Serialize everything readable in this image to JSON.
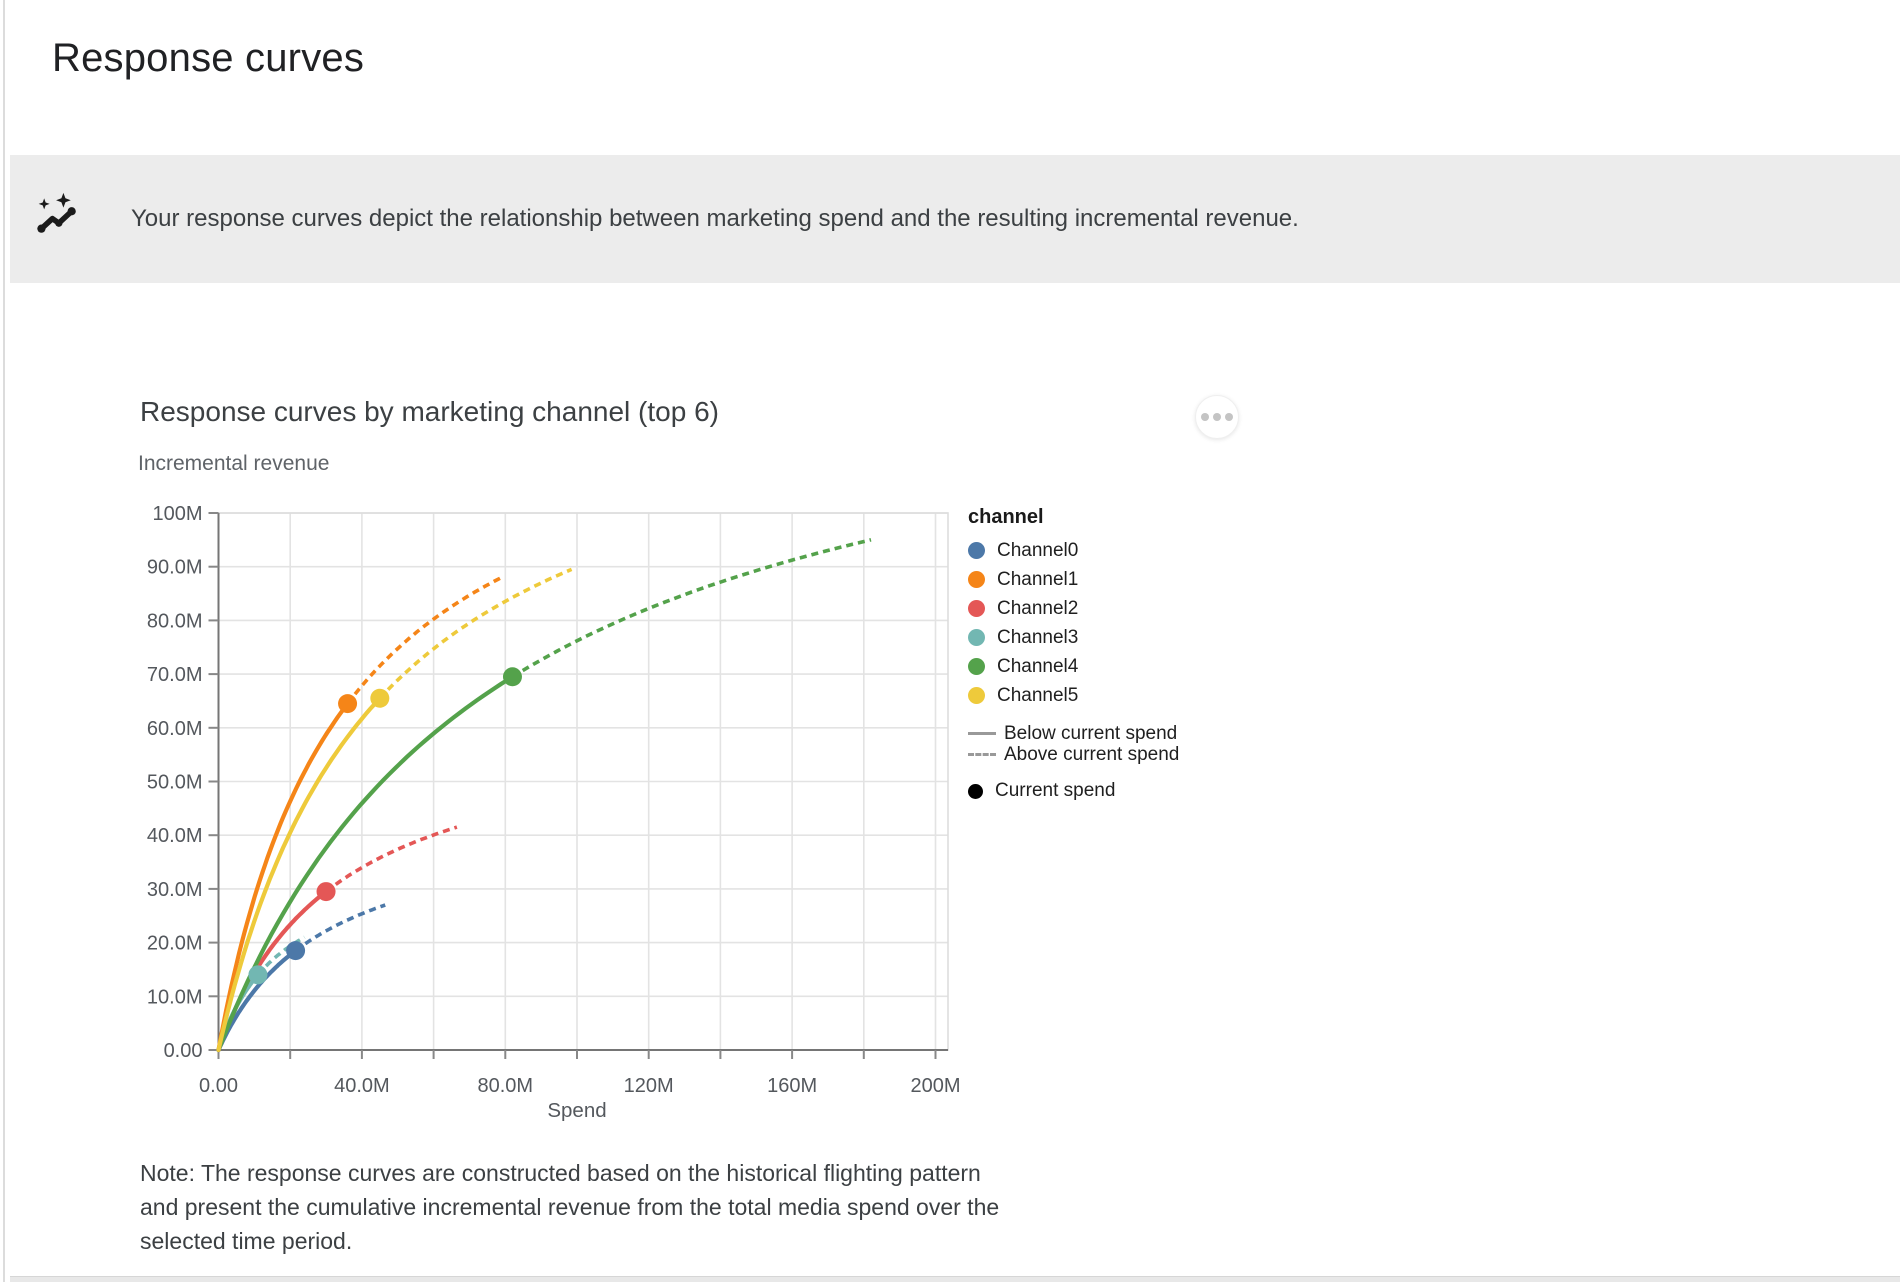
{
  "page": {
    "title": "Response curves",
    "banner": {
      "icon": "trend-sparkle-icon",
      "text": "Your response curves depict the relationship between marketing spend and the resulting incremental revenue."
    }
  },
  "chart": {
    "title": "Response curves by marketing channel (top 6)",
    "note_lines": [
      "Note: The response curves are constructed based on the historical flighting pattern",
      "and present the cumulative incremental revenue from the total media spend over the",
      "selected time period."
    ]
  },
  "chart_data": {
    "type": "line",
    "title": "Response curves by marketing channel (top 6)",
    "xlabel": "Spend",
    "ylabel": "Incremental revenue",
    "x_unit": "millions",
    "y_unit": "millions",
    "xlim": [
      0,
      207
    ],
    "ylim": [
      0,
      100
    ],
    "x_gridline_step": 20,
    "y_gridline_step": 10,
    "grid": true,
    "x_tick_labels": [
      "0.00",
      "40.0M",
      "80.0M",
      "120M",
      "160M",
      "200M"
    ],
    "y_tick_labels": [
      "0.00",
      "10.0M",
      "20.0M",
      "30.0M",
      "40.0M",
      "50.0M",
      "60.0M",
      "70.0M",
      "80.0M",
      "90.0M",
      "100M"
    ],
    "legend_title": "channel",
    "legend_position": "right",
    "series": [
      {
        "name": "Channel0",
        "color": "#4c78a8",
        "current_spend": 21.5,
        "current_revenue": 18.5,
        "max_spend": 46.5,
        "max_revenue": 27
      },
      {
        "name": "Channel1",
        "color": "#f58518",
        "current_spend": 36,
        "current_revenue": 64.5,
        "max_spend": 79,
        "max_revenue": 88
      },
      {
        "name": "Channel2",
        "color": "#e45756",
        "current_spend": 30,
        "current_revenue": 29.5,
        "max_spend": 66.5,
        "max_revenue": 41.5
      },
      {
        "name": "Channel3",
        "color": "#72b7b2",
        "current_spend": 11,
        "current_revenue": 14,
        "max_spend": 24,
        "max_revenue": 21
      },
      {
        "name": "Channel4",
        "color": "#54a24b",
        "current_spend": 82,
        "current_revenue": 69.5,
        "max_spend": 182,
        "max_revenue": 95
      },
      {
        "name": "Channel5",
        "color": "#eeca3b",
        "current_spend": 45,
        "current_revenue": 65.5,
        "max_spend": 98.5,
        "max_revenue": 89.5
      }
    ],
    "line_style_legend": [
      {
        "label": "Below current spend",
        "style": "solid"
      },
      {
        "label": "Above current spend",
        "style": "dashed"
      }
    ],
    "point_legend_label": "Current spend"
  }
}
